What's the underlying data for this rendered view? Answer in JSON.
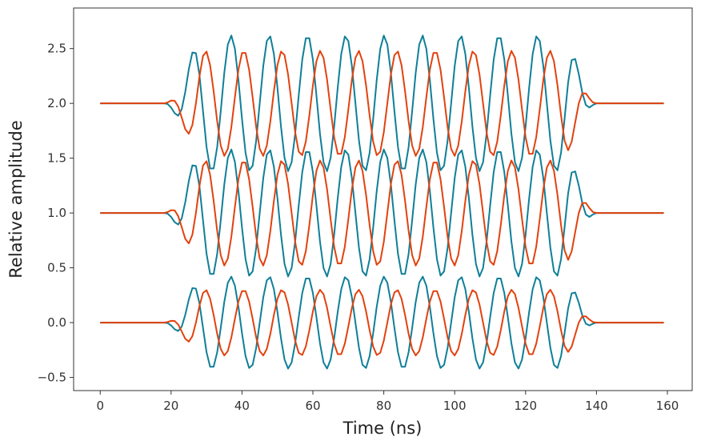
{
  "chart_data": {
    "type": "line",
    "xlabel": "Time (ns)",
    "ylabel": "Relative amplitude",
    "xlim": [
      -7.5,
      167
    ],
    "ylim": [
      -0.62,
      2.87
    ],
    "xticks": [
      "0",
      "20",
      "40",
      "60",
      "80",
      "100",
      "120",
      "140",
      "160"
    ],
    "yticks": [
      "−0.5",
      "0.0",
      "0.5",
      "1.0",
      "1.5",
      "2.0",
      "2.5"
    ],
    "xtick_values": [
      0,
      20,
      40,
      60,
      80,
      100,
      120,
      140,
      160
    ],
    "ytick_values": [
      -0.5,
      0.0,
      0.5,
      1.0,
      1.5,
      2.0,
      2.5
    ],
    "grid": false,
    "legend": "none",
    "colors": {
      "teal": "#0f7f98",
      "orange": "#e2420e"
    },
    "model": {
      "pulse_start_ns": 18,
      "pulse_end_ns": 140,
      "flat_start_ns": 30,
      "flat_end_ns": 130,
      "sample_step_ns": 1,
      "x_max_ns": 159,
      "teal_period_ns": 10.8,
      "orange_period_ns": 10.8,
      "orange_phase_lag_ns": 3.6
    },
    "series": [
      {
        "color": "teal",
        "offset": 2.0,
        "amplitude": 0.62
      },
      {
        "color": "orange",
        "offset": 2.0,
        "amplitude": 0.48
      },
      {
        "color": "teal",
        "offset": 1.0,
        "amplitude": 0.58
      },
      {
        "color": "orange",
        "offset": 1.0,
        "amplitude": 0.48
      },
      {
        "color": "teal",
        "offset": 0.0,
        "amplitude": 0.42
      },
      {
        "color": "orange",
        "offset": 0.0,
        "amplitude": 0.3
      }
    ]
  }
}
